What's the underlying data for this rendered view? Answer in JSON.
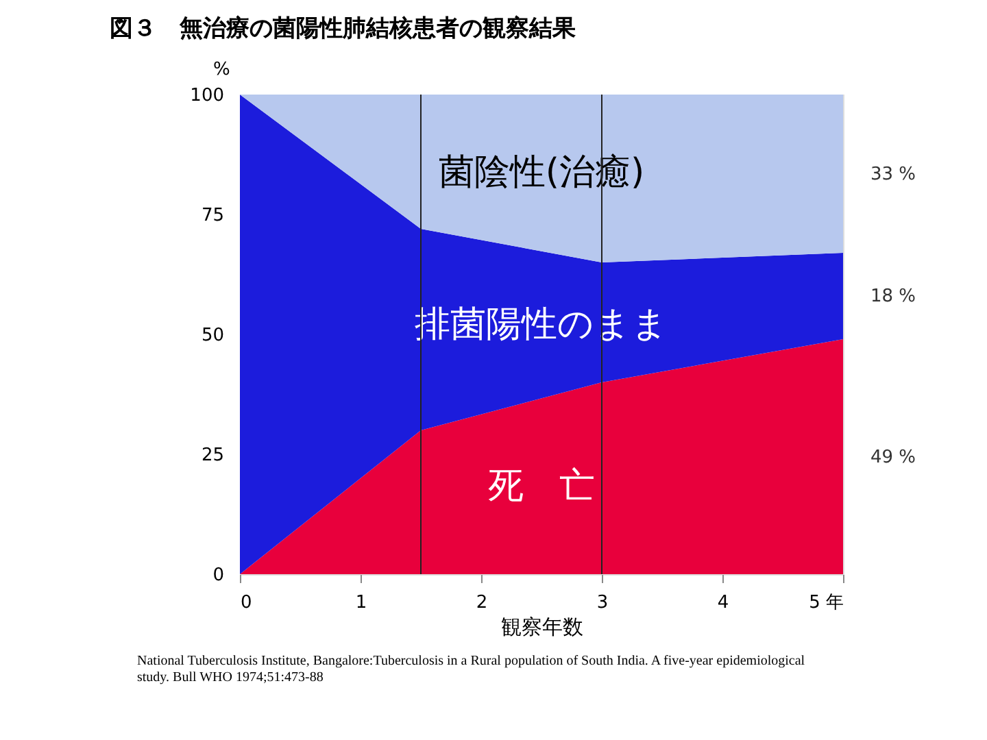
{
  "chart_data": {
    "type": "area",
    "stacked": true,
    "title": "図３　無治療の菌陽性肺結核患者の観察結果",
    "xlabel": "観察年数",
    "ylabel": "%",
    "x": [
      0,
      1.5,
      3,
      5
    ],
    "series": [
      {
        "name": "死　亡",
        "color": "#e8003c",
        "values": [
          0,
          30,
          40,
          49
        ]
      },
      {
        "name": "排菌陽性のまま",
        "color": "#1c1cdc",
        "values": [
          100,
          42,
          25,
          18
        ]
      },
      {
        "name": "菌陰性(治癒)",
        "color": "#b7c8ee",
        "values": [
          0,
          28,
          35,
          33
        ]
      }
    ],
    "xlim": [
      0,
      5
    ],
    "xticks": [
      0,
      1,
      2,
      3,
      4,
      {
        "value": 5,
        "label": "5 年"
      }
    ],
    "ylim": [
      0,
      100
    ],
    "yticks": [
      0,
      25,
      50,
      75,
      100
    ],
    "ref_lines": [
      {
        "axis": "x",
        "value": 1.5
      },
      {
        "axis": "x",
        "value": 3
      }
    ],
    "annotations": [
      "49 %",
      "18 %",
      "33 %",
      "National Tuberculosis Institute, Bangalore:Tuberculosis in a Rural population of South India. A five-year epidemiological study. Bull WHO 1974;51:473-88"
    ],
    "grid": false,
    "legend": false
  }
}
